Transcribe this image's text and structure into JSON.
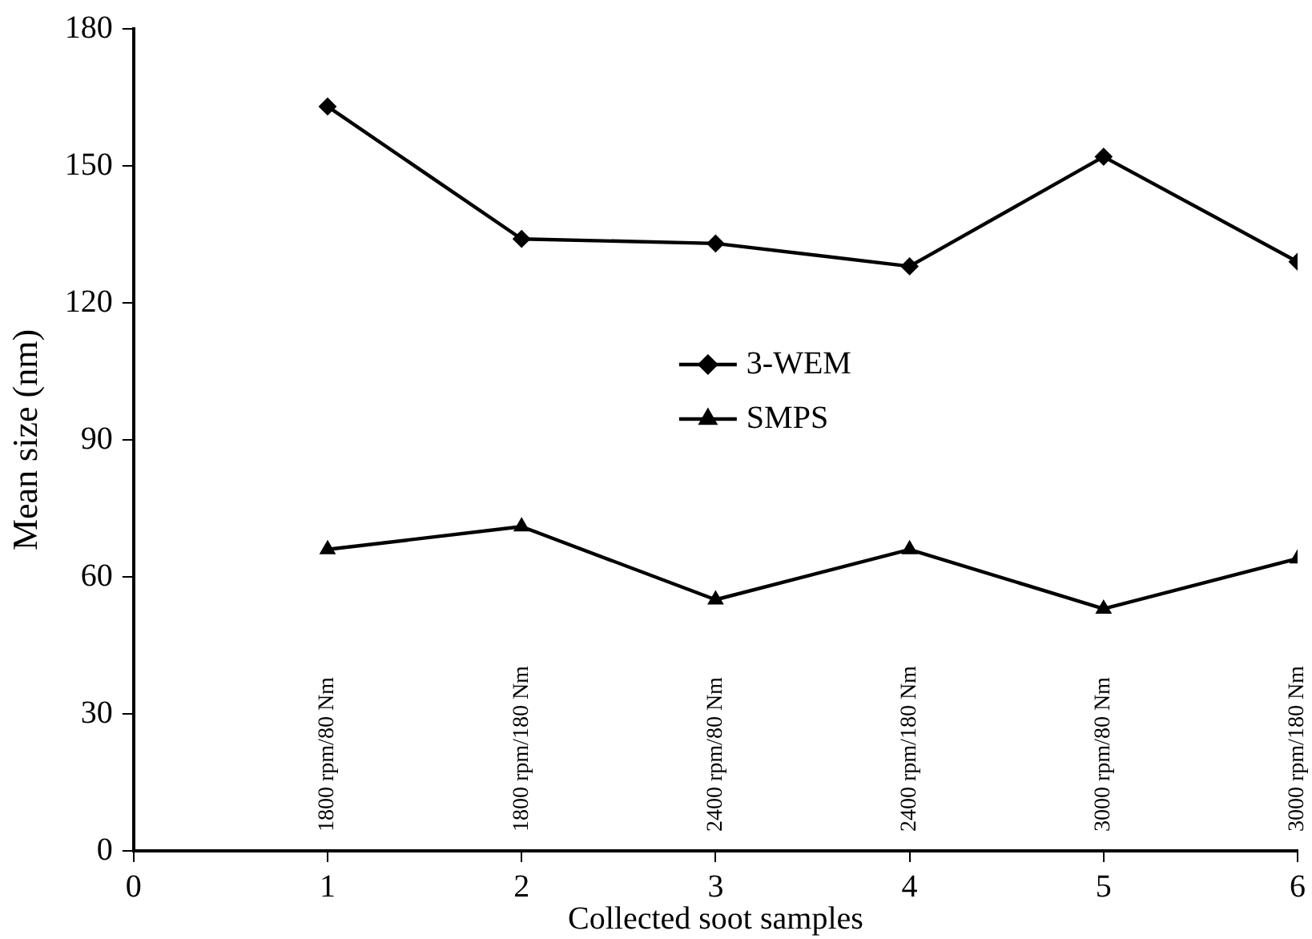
{
  "chart_data": {
    "type": "line",
    "xlabel": "Collected soot samples",
    "ylabel": "Mean size (nm)",
    "x": [
      1,
      2,
      3,
      4,
      5,
      6
    ],
    "series": [
      {
        "name": "3-WEM",
        "color": "#000000",
        "marker": "diamond",
        "values": [
          163,
          134,
          133,
          128,
          152,
          129
        ]
      },
      {
        "name": "SMPS",
        "color": "#000000",
        "marker": "triangle",
        "values": [
          66,
          71,
          55,
          66,
          53,
          64
        ]
      }
    ],
    "xlim": [
      0,
      6
    ],
    "xticks": [
      0,
      1,
      2,
      3,
      4,
      5,
      6
    ],
    "ylim": [
      0,
      180
    ],
    "yticks": [
      0,
      30,
      60,
      90,
      120,
      150,
      180
    ],
    "grid": false,
    "legend": "center",
    "line_style": "solid",
    "annotations": [
      "1800 rpm/80 Nm",
      "1800 rpm/180 Nm",
      "2400 rpm/80 Nm",
      "2400 rpm/180 Nm",
      "3000 rpm/80 Nm",
      "3000 rpm/180 Nm"
    ]
  }
}
